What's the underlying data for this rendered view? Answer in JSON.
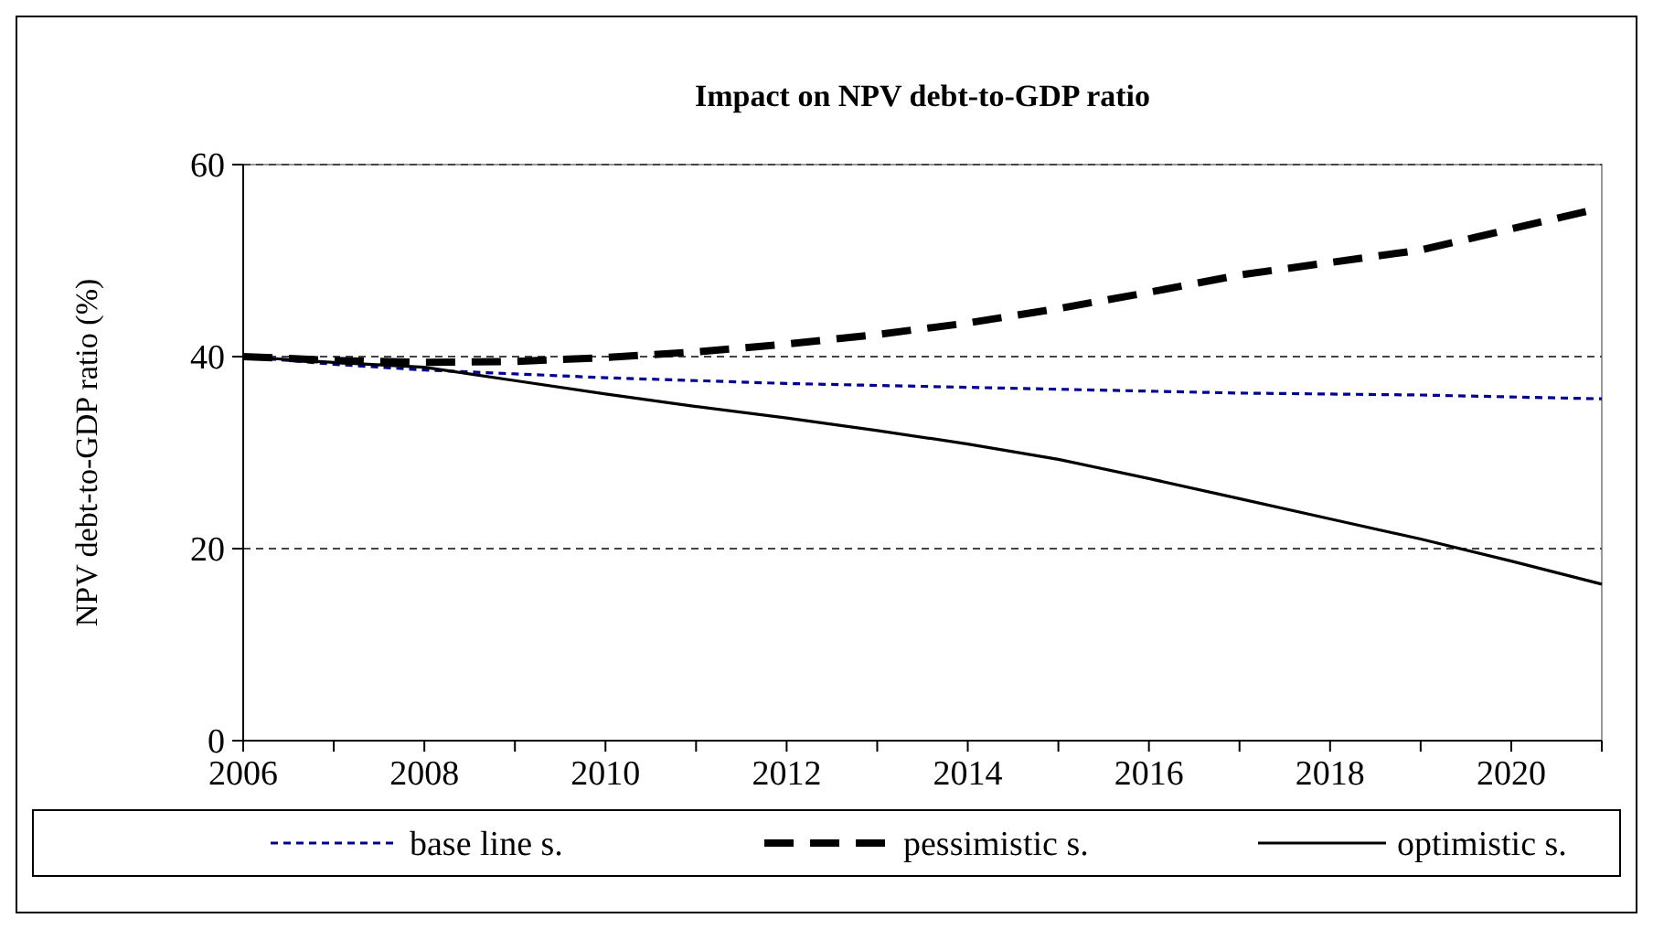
{
  "chart_data": {
    "type": "line",
    "title": "Impact on NPV debt-to-GDP ratio",
    "ylabel": "NPV debt-to-GDP ratio (%)",
    "x": [
      2006,
      2007,
      2008,
      2009,
      2010,
      2011,
      2012,
      2013,
      2014,
      2015,
      2016,
      2017,
      2018,
      2019,
      2020,
      2021
    ],
    "xlim": [
      2006,
      2021
    ],
    "xticks": [
      2006,
      {
        "value": 2007,
        "label": null
      },
      2008,
      {
        "value": 2009,
        "label": null
      },
      2010,
      {
        "value": 2011,
        "label": null
      },
      2012,
      {
        "value": 2013,
        "label": null
      },
      2014,
      {
        "value": 2015,
        "label": null
      },
      2016,
      {
        "value": 2017,
        "label": null
      },
      2018,
      {
        "value": 2019,
        "label": null
      },
      2020,
      {
        "value": 2021,
        "label": null
      }
    ],
    "ylim": [
      0,
      60
    ],
    "yticks": [
      0,
      20,
      40,
      60
    ],
    "grid": "y",
    "legend": "bottom",
    "marker": "none",
    "series": [
      {
        "name": "base line s.",
        "color": "#00008b",
        "line_style": "dotted",
        "values": [
          40,
          39.2,
          38.6,
          38.2,
          37.8,
          37.5,
          37.2,
          37.0,
          36.8,
          36.6,
          36.4,
          36.2,
          36.1,
          36.0,
          35.8,
          35.6
        ]
      },
      {
        "name": "pessimistic s.",
        "color": "#000000",
        "line_style": "dashed",
        "values": [
          40,
          39.6,
          39.4,
          39.5,
          39.9,
          40.5,
          41.3,
          42.3,
          43.5,
          45.0,
          46.7,
          48.5,
          49.8,
          51.1,
          53.3,
          55.5
        ]
      },
      {
        "name": "optimistic s.",
        "color": "#000000",
        "line_style": "solid",
        "values": [
          40,
          39.4,
          38.9,
          37.5,
          36.1,
          34.8,
          33.6,
          32.3,
          30.9,
          29.3,
          27.3,
          25.2,
          23.1,
          21.0,
          18.7,
          16.3
        ]
      }
    ]
  }
}
